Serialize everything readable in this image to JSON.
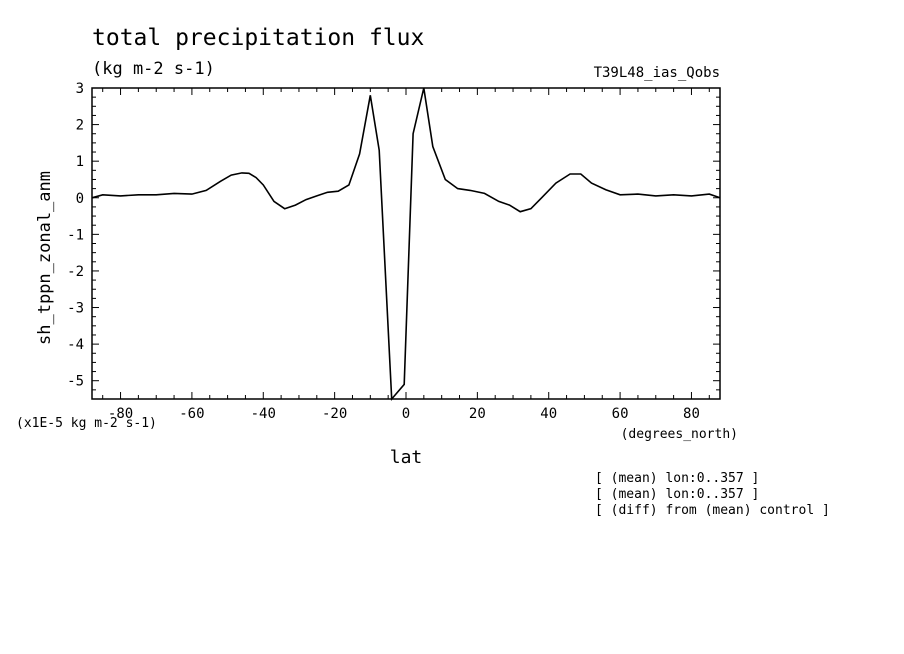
{
  "chart_data": {
    "type": "line",
    "title": "total precipitation flux",
    "units_label": "(kg m-2 s-1)",
    "experiment": "T39L48_ias_Qobs",
    "ylabel": "sh_tppn_zonal_anm",
    "yscale_label": "(x1E-5 kg m-2 s-1)",
    "xlabel": "lat",
    "xunits_label": "(degrees_north)",
    "xlim": [
      -88,
      88
    ],
    "ylim": [
      -5.5,
      3
    ],
    "xticks": [
      "-80",
      "-60",
      "-40",
      "-20",
      "0",
      "20",
      "40",
      "60",
      "80"
    ],
    "yticks": [
      "3",
      "2",
      "1",
      "0",
      "-1",
      "-2",
      "-3",
      "-4",
      "-5"
    ],
    "grid": false,
    "series": [
      {
        "x": [
          -88,
          -85,
          -80,
          -75,
          -70,
          -65,
          -60,
          -56,
          -52,
          -49,
          -46,
          -44,
          -42,
          -40,
          -37,
          -34,
          -31,
          -28,
          -25,
          -22,
          -19,
          -16,
          -13,
          -10,
          -7.5,
          -4,
          -0.5,
          2,
          5,
          7.5,
          11,
          14.5,
          18,
          22,
          26,
          29,
          32,
          35,
          38,
          42,
          46,
          49,
          52,
          56,
          60,
          65,
          70,
          75,
          80,
          85,
          88
        ],
        "y": [
          0.0,
          0.08,
          0.05,
          0.08,
          0.08,
          0.12,
          0.1,
          0.2,
          0.45,
          0.62,
          0.68,
          0.67,
          0.55,
          0.35,
          -0.1,
          -0.3,
          -0.2,
          -0.05,
          0.05,
          0.15,
          0.18,
          0.35,
          1.2,
          2.8,
          1.3,
          -5.5,
          -5.1,
          1.75,
          3.0,
          1.4,
          0.5,
          0.25,
          0.2,
          0.12,
          -0.1,
          -0.2,
          -0.38,
          -0.3,
          0.0,
          0.4,
          0.65,
          0.65,
          0.4,
          0.22,
          0.08,
          0.1,
          0.05,
          0.08,
          0.05,
          0.1,
          0.0
        ]
      }
    ]
  },
  "annotations": [
    "[ (mean) lon:0..357 ]",
    "[ (mean) lon:0..357 ]",
    "[ (diff) from (mean) control ]"
  ]
}
